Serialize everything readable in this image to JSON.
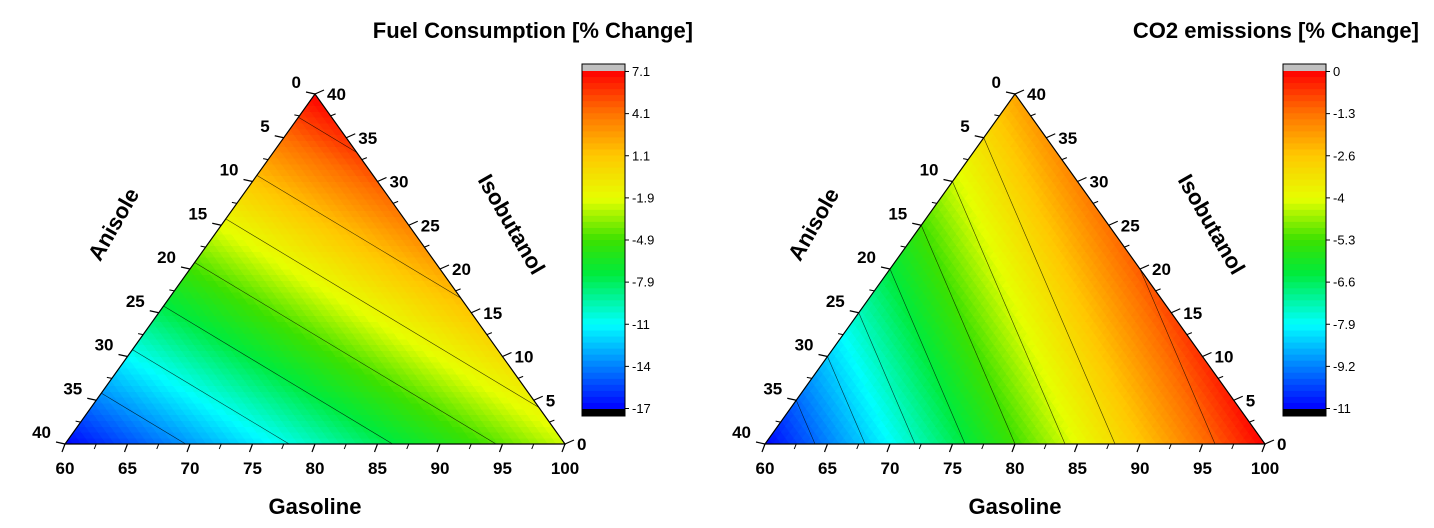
{
  "chart_data": [
    {
      "type": "ternary-contour",
      "title": "Fuel Consumption [% Change]",
      "axes": {
        "bottom": {
          "label": "Gasoline",
          "range": [
            60,
            100
          ],
          "ticks": [
            "60",
            "65",
            "70",
            "75",
            "80",
            "85",
            "90",
            "95",
            "100"
          ]
        },
        "left": {
          "label": "Anisole",
          "range": [
            0,
            40
          ],
          "ticks": [
            "0",
            "5",
            "10",
            "15",
            "20",
            "25",
            "30",
            "35",
            "40"
          ]
        },
        "right": {
          "label": "Isobutanol",
          "range": [
            0,
            40
          ],
          "ticks": [
            "0",
            "5",
            "10",
            "15",
            "20",
            "25",
            "30",
            "35",
            "40"
          ]
        }
      },
      "corner_values": {
        "gasoline100": -2.5,
        "anisole40": -17,
        "isobutanol40": 7.1
      },
      "colorbar": {
        "min": -17,
        "max": 7.1,
        "ticks": [
          "7.1",
          "4.1",
          "1.1",
          "-1.9",
          "-4.9",
          "-7.9",
          "-11",
          "-14",
          "-17"
        ]
      },
      "contour_levels": [
        5.5,
        1.5,
        -1.5,
        -4.5,
        -7.5,
        -10.5,
        -13.5
      ]
    },
    {
      "type": "ternary-contour",
      "title": "CO2 emissions [% Change]",
      "axes": {
        "bottom": {
          "label": "Gasoline",
          "range": [
            60,
            100
          ],
          "ticks": [
            "60",
            "65",
            "70",
            "75",
            "80",
            "85",
            "90",
            "95",
            "100"
          ]
        },
        "left": {
          "label": "Anisole",
          "range": [
            0,
            40
          ],
          "ticks": [
            "0",
            "5",
            "10",
            "15",
            "20",
            "25",
            "30",
            "35",
            "40"
          ]
        },
        "right": {
          "label": "Isobutanol",
          "range": [
            0,
            40
          ],
          "ticks": [
            "0",
            "5",
            "10",
            "15",
            "20",
            "25",
            "30",
            "35",
            "40"
          ]
        }
      },
      "corner_values": {
        "gasoline100": 0,
        "anisole40": -11,
        "isobutanol40": -2.2
      },
      "colorbar": {
        "min": -11,
        "max": 0,
        "ticks": [
          "0",
          "-1.3",
          "-2.6",
          "-4",
          "-5.3",
          "-6.6",
          "-7.9",
          "-9.2",
          "-11"
        ]
      },
      "contour_levels": [
        -1.1,
        -2.2,
        -3.3,
        -4.4,
        -5.5,
        -6.6,
        -7.7,
        -8.8,
        -9.9
      ]
    }
  ]
}
